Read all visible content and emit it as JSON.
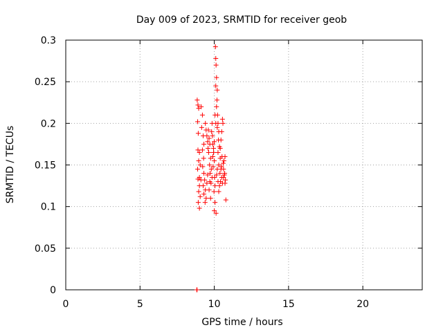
{
  "chart_data": {
    "type": "scatter",
    "title": "Day 009 of 2023, SRMTID for receiver geob",
    "xlabel": "GPS time / hours",
    "ylabel": "SRMTID / TECUs",
    "xlim": [
      0,
      24
    ],
    "ylim": [
      0,
      0.3
    ],
    "xticks": [
      "0",
      "5",
      "10",
      "15",
      "20"
    ],
    "yticks": [
      "0",
      "0.05",
      "0.1",
      "0.15",
      "0.2",
      "0.25",
      "0.3"
    ],
    "grid": true,
    "marker": "+",
    "color": "#ff0000",
    "series": [
      {
        "points": [
          [
            8.82,
            0.0
          ],
          [
            8.83,
            0.0
          ],
          [
            8.84,
            0.0
          ],
          [
            8.85,
            0.228
          ],
          [
            8.9,
            0.222
          ],
          [
            8.95,
            0.218
          ],
          [
            8.88,
            0.202
          ],
          [
            8.92,
            0.188
          ],
          [
            8.9,
            0.168
          ],
          [
            9.0,
            0.165
          ],
          [
            8.95,
            0.155
          ],
          [
            9.05,
            0.15
          ],
          [
            8.88,
            0.145
          ],
          [
            9.0,
            0.135
          ],
          [
            8.9,
            0.133
          ],
          [
            9.1,
            0.132
          ],
          [
            9.0,
            0.125
          ],
          [
            8.95,
            0.118
          ],
          [
            9.05,
            0.112
          ],
          [
            8.92,
            0.105
          ],
          [
            9.0,
            0.098
          ],
          [
            9.12,
            0.22
          ],
          [
            9.2,
            0.21
          ],
          [
            9.15,
            0.195
          ],
          [
            9.25,
            0.185
          ],
          [
            9.3,
            0.175
          ],
          [
            9.2,
            0.168
          ],
          [
            9.28,
            0.158
          ],
          [
            9.22,
            0.148
          ],
          [
            9.3,
            0.14
          ],
          [
            9.35,
            0.132
          ],
          [
            9.25,
            0.125
          ],
          [
            9.4,
            0.12
          ],
          [
            9.3,
            0.115
          ],
          [
            9.45,
            0.11
          ],
          [
            9.38,
            0.105
          ],
          [
            9.5,
            0.128
          ],
          [
            9.55,
            0.138
          ],
          [
            9.6,
            0.192
          ],
          [
            9.65,
            0.182
          ],
          [
            9.7,
            0.175
          ],
          [
            9.62,
            0.165
          ],
          [
            9.75,
            0.158
          ],
          [
            9.68,
            0.15
          ],
          [
            9.8,
            0.145
          ],
          [
            9.72,
            0.14
          ],
          [
            9.85,
            0.135
          ],
          [
            9.78,
            0.128
          ],
          [
            9.9,
            0.16
          ],
          [
            9.95,
            0.17
          ],
          [
            9.88,
            0.185
          ],
          [
            10.0,
            0.155
          ],
          [
            9.92,
            0.148
          ],
          [
            10.02,
            0.135
          ],
          [
            10.05,
            0.125
          ],
          [
            9.98,
            0.118
          ],
          [
            10.05,
            0.105
          ],
          [
            10.0,
            0.095
          ],
          [
            10.12,
            0.092
          ],
          [
            10.08,
            0.292
          ],
          [
            10.1,
            0.278
          ],
          [
            10.12,
            0.27
          ],
          [
            10.15,
            0.255
          ],
          [
            10.1,
            0.245
          ],
          [
            10.2,
            0.24
          ],
          [
            10.18,
            0.228
          ],
          [
            10.15,
            0.22
          ],
          [
            10.22,
            0.21
          ],
          [
            10.25,
            0.2
          ],
          [
            10.2,
            0.195
          ],
          [
            10.3,
            0.19
          ],
          [
            10.28,
            0.18
          ],
          [
            10.35,
            0.172
          ],
          [
            10.25,
            0.165
          ],
          [
            10.4,
            0.158
          ],
          [
            10.3,
            0.15
          ],
          [
            10.45,
            0.145
          ],
          [
            10.38,
            0.14
          ],
          [
            10.5,
            0.135
          ],
          [
            10.42,
            0.13
          ],
          [
            10.55,
            0.128
          ],
          [
            10.48,
            0.148
          ],
          [
            10.6,
            0.152
          ],
          [
            10.52,
            0.16
          ],
          [
            10.65,
            0.155
          ],
          [
            10.58,
            0.2
          ],
          [
            10.7,
            0.14
          ],
          [
            10.62,
            0.135
          ],
          [
            10.75,
            0.132
          ],
          [
            10.72,
            0.128
          ],
          [
            10.78,
            0.108
          ],
          [
            10.3,
            0.118
          ],
          [
            10.35,
            0.125
          ],
          [
            9.4,
            0.2
          ],
          [
            9.45,
            0.192
          ],
          [
            9.5,
            0.185
          ],
          [
            9.55,
            0.178
          ],
          [
            9.58,
            0.17
          ],
          [
            9.82,
            0.19
          ],
          [
            9.85,
            0.2
          ],
          [
            10.05,
            0.21
          ],
          [
            10.1,
            0.2
          ],
          [
            9.9,
            0.175
          ],
          [
            9.95,
            0.165
          ],
          [
            10.0,
            0.178
          ],
          [
            9.7,
            0.13
          ],
          [
            9.65,
            0.12
          ],
          [
            9.75,
            0.11
          ],
          [
            10.55,
            0.205
          ],
          [
            10.5,
            0.19
          ],
          [
            10.45,
            0.18
          ],
          [
            10.4,
            0.17
          ],
          [
            10.62,
            0.145
          ],
          [
            10.68,
            0.138
          ],
          [
            10.72,
            0.16
          ],
          [
            10.2,
            0.145
          ],
          [
            10.15,
            0.138
          ],
          [
            10.25,
            0.13
          ]
        ]
      }
    ]
  }
}
